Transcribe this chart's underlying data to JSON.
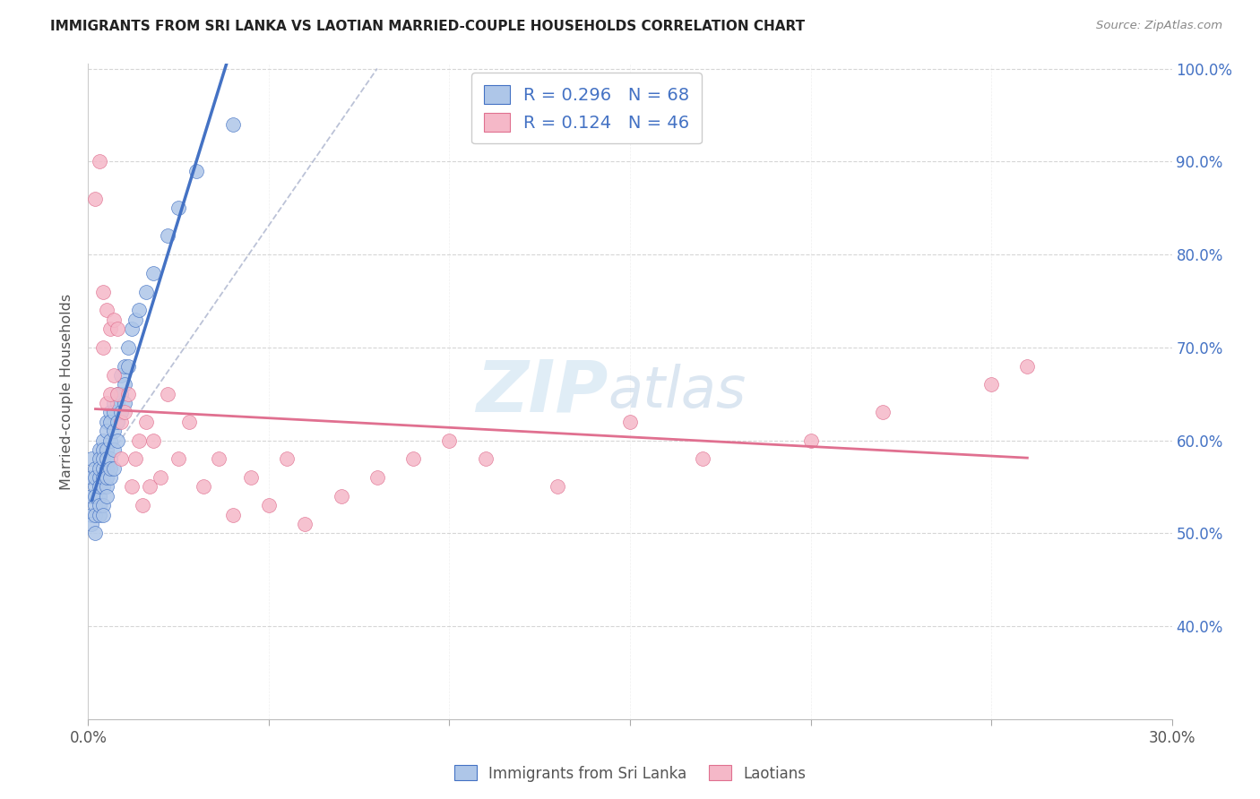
{
  "title": "IMMIGRANTS FROM SRI LANKA VS LAOTIAN MARRIED-COUPLE HOUSEHOLDS CORRELATION CHART",
  "source": "Source: ZipAtlas.com",
  "ylabel": "Married-couple Households",
  "xmin": 0.0,
  "xmax": 0.3,
  "ymin": 0.3,
  "ymax": 1.005,
  "xticks": [
    0.0,
    0.05,
    0.1,
    0.15,
    0.2,
    0.25,
    0.3
  ],
  "yticks": [
    0.4,
    0.5,
    0.6,
    0.7,
    0.8,
    0.9,
    1.0
  ],
  "sri_lanka_color": "#aec6e8",
  "laotian_color": "#f5b8c8",
  "sri_lanka_R": 0.296,
  "sri_lanka_N": 68,
  "laotian_R": 0.124,
  "laotian_N": 46,
  "legend_label_1": "Immigrants from Sri Lanka",
  "legend_label_2": "Laotians",
  "accent_color": "#4472c4",
  "pink_color": "#e07090",
  "watermark_zip": "ZIP",
  "watermark_atlas": "atlas",
  "sri_lanka_x": [
    0.001,
    0.001,
    0.001,
    0.001,
    0.001,
    0.002,
    0.002,
    0.002,
    0.002,
    0.002,
    0.002,
    0.002,
    0.003,
    0.003,
    0.003,
    0.003,
    0.003,
    0.003,
    0.003,
    0.003,
    0.004,
    0.004,
    0.004,
    0.004,
    0.004,
    0.004,
    0.004,
    0.004,
    0.005,
    0.005,
    0.005,
    0.005,
    0.005,
    0.005,
    0.005,
    0.005,
    0.006,
    0.006,
    0.006,
    0.006,
    0.006,
    0.006,
    0.007,
    0.007,
    0.007,
    0.007,
    0.007,
    0.008,
    0.008,
    0.008,
    0.008,
    0.009,
    0.009,
    0.009,
    0.01,
    0.01,
    0.01,
    0.011,
    0.011,
    0.012,
    0.013,
    0.014,
    0.016,
    0.018,
    0.022,
    0.025,
    0.03,
    0.04
  ],
  "sri_lanka_y": [
    0.54,
    0.52,
    0.58,
    0.56,
    0.51,
    0.57,
    0.55,
    0.53,
    0.52,
    0.56,
    0.54,
    0.5,
    0.59,
    0.58,
    0.56,
    0.54,
    0.52,
    0.55,
    0.57,
    0.53,
    0.6,
    0.59,
    0.57,
    0.55,
    0.58,
    0.56,
    0.53,
    0.52,
    0.62,
    0.61,
    0.59,
    0.57,
    0.55,
    0.58,
    0.56,
    0.54,
    0.63,
    0.62,
    0.6,
    0.58,
    0.56,
    0.57,
    0.64,
    0.63,
    0.61,
    0.59,
    0.57,
    0.65,
    0.64,
    0.62,
    0.6,
    0.67,
    0.65,
    0.63,
    0.68,
    0.66,
    0.64,
    0.7,
    0.68,
    0.72,
    0.73,
    0.74,
    0.76,
    0.78,
    0.82,
    0.85,
    0.89,
    0.94
  ],
  "laotian_x": [
    0.002,
    0.003,
    0.004,
    0.004,
    0.005,
    0.005,
    0.006,
    0.006,
    0.007,
    0.007,
    0.008,
    0.008,
    0.009,
    0.009,
    0.01,
    0.011,
    0.012,
    0.013,
    0.014,
    0.015,
    0.016,
    0.017,
    0.018,
    0.02,
    0.022,
    0.025,
    0.028,
    0.032,
    0.036,
    0.04,
    0.045,
    0.05,
    0.055,
    0.06,
    0.07,
    0.08,
    0.09,
    0.1,
    0.11,
    0.13,
    0.15,
    0.17,
    0.2,
    0.22,
    0.25,
    0.26
  ],
  "laotian_y": [
    0.86,
    0.9,
    0.76,
    0.7,
    0.74,
    0.64,
    0.72,
    0.65,
    0.73,
    0.67,
    0.72,
    0.65,
    0.58,
    0.62,
    0.63,
    0.65,
    0.55,
    0.58,
    0.6,
    0.53,
    0.62,
    0.55,
    0.6,
    0.56,
    0.65,
    0.58,
    0.62,
    0.55,
    0.58,
    0.52,
    0.56,
    0.53,
    0.58,
    0.51,
    0.54,
    0.56,
    0.58,
    0.6,
    0.58,
    0.55,
    0.62,
    0.58,
    0.6,
    0.63,
    0.66,
    0.68
  ]
}
